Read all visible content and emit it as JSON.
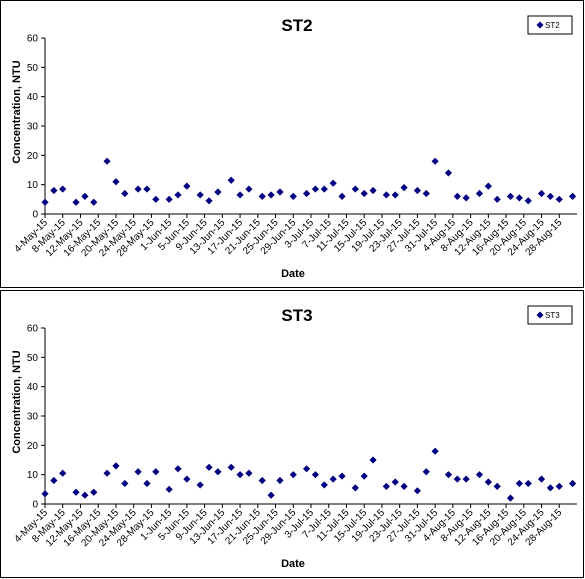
{
  "chart_data": [
    {
      "type": "scatter",
      "title": "ST2",
      "xlabel": "Date",
      "ylabel": "Concentration, NTU",
      "ylim": [
        0,
        60
      ],
      "yticks": [
        0,
        10,
        20,
        30,
        40,
        50,
        60
      ],
      "x_tick_labels": [
        "4-May-15",
        "8-May-15",
        "12-May-15",
        "16-May-15",
        "20-May-15",
        "24-May-15",
        "28-May-15",
        "1-Jun-15",
        "5-Jun-15",
        "9-Jun-15",
        "13-Jun-15",
        "17-Jun-15",
        "21-Jun-15",
        "25-Jun-15",
        "29-Jun-15",
        "3-Jul-15",
        "7-Jul-15",
        "11-Jul-15",
        "15-Jul-15",
        "19-Jul-15",
        "23-Jul-15",
        "27-Jul-15",
        "31-Jul-15",
        "4-Aug-15",
        "8-Aug-15",
        "12-Aug-15",
        "16-Aug-15",
        "20-Aug-15",
        "24-Aug-15",
        "28-Aug-15"
      ],
      "x_range": [
        "2015-05-04",
        "2015-09-01"
      ],
      "grid": false,
      "legend": "top-right",
      "series": [
        {
          "name": "ST2",
          "color": "#000080",
          "marker": "diamond",
          "points": [
            [
              "2015-05-04",
              4
            ],
            [
              "2015-05-06",
              8
            ],
            [
              "2015-05-08",
              8.5
            ],
            [
              "2015-05-11",
              4
            ],
            [
              "2015-05-13",
              6
            ],
            [
              "2015-05-15",
              4
            ],
            [
              "2015-05-18",
              18
            ],
            [
              "2015-05-20",
              11
            ],
            [
              "2015-05-22",
              7
            ],
            [
              "2015-05-25",
              8.5
            ],
            [
              "2015-05-27",
              8.5
            ],
            [
              "2015-05-29",
              5
            ],
            [
              "2015-06-01",
              5
            ],
            [
              "2015-06-03",
              6.5
            ],
            [
              "2015-06-05",
              9.5
            ],
            [
              "2015-06-08",
              6.5
            ],
            [
              "2015-06-10",
              4.5
            ],
            [
              "2015-06-12",
              7.5
            ],
            [
              "2015-06-15",
              11.5
            ],
            [
              "2015-06-17",
              6.5
            ],
            [
              "2015-06-19",
              8.5
            ],
            [
              "2015-06-22",
              6
            ],
            [
              "2015-06-24",
              6.5
            ],
            [
              "2015-06-26",
              7.5
            ],
            [
              "2015-06-29",
              6
            ],
            [
              "2015-07-02",
              7
            ],
            [
              "2015-07-04",
              8.5
            ],
            [
              "2015-07-06",
              8.5
            ],
            [
              "2015-07-08",
              10.5
            ],
            [
              "2015-07-10",
              6
            ],
            [
              "2015-07-13",
              8.5
            ],
            [
              "2015-07-15",
              7
            ],
            [
              "2015-07-17",
              8
            ],
            [
              "2015-07-20",
              6.5
            ],
            [
              "2015-07-22",
              6.5
            ],
            [
              "2015-07-24",
              9
            ],
            [
              "2015-07-27",
              8
            ],
            [
              "2015-07-29",
              7
            ],
            [
              "2015-07-31",
              18
            ],
            [
              "2015-08-03",
              14
            ],
            [
              "2015-08-05",
              6
            ],
            [
              "2015-08-07",
              5.5
            ],
            [
              "2015-08-10",
              7
            ],
            [
              "2015-08-12",
              9.5
            ],
            [
              "2015-08-14",
              5
            ],
            [
              "2015-08-17",
              6
            ],
            [
              "2015-08-19",
              5.5
            ],
            [
              "2015-08-21",
              4.5
            ],
            [
              "2015-08-24",
              7
            ],
            [
              "2015-08-26",
              6
            ],
            [
              "2015-08-28",
              5
            ],
            [
              "2015-08-31",
              6
            ]
          ]
        }
      ]
    },
    {
      "type": "scatter",
      "title": "ST3",
      "xlabel": "Date",
      "ylabel": "Concentration, NTU",
      "ylim": [
        0,
        60
      ],
      "yticks": [
        0,
        10,
        20,
        30,
        40,
        50,
        60
      ],
      "x_tick_labels": [
        "4-May-15",
        "8-May-15",
        "12-May-15",
        "16-May-15",
        "20-May-15",
        "24-May-15",
        "28-May-15",
        "1-Jun-15",
        "5-Jun-15",
        "9-Jun-15",
        "13-Jun-15",
        "17-Jun-15",
        "21-Jun-15",
        "25-Jun-15",
        "29-Jun-15",
        "3-Jul-15",
        "7-Jul-15",
        "11-Jul-15",
        "15-Jul-15",
        "19-Jul-15",
        "23-Jul-15",
        "27-Jul-15",
        "31-Jul-15",
        "4-Aug-15",
        "8-Aug-15",
        "12-Aug-15",
        "16-Aug-15",
        "20-Aug-15",
        "24-Aug-15",
        "28-Aug-15"
      ],
      "x_range": [
        "2015-05-04",
        "2015-09-01"
      ],
      "grid": false,
      "legend": "top-right",
      "series": [
        {
          "name": "ST3",
          "color": "#000080",
          "marker": "diamond",
          "points": [
            [
              "2015-05-04",
              3.5
            ],
            [
              "2015-05-06",
              8
            ],
            [
              "2015-05-08",
              10.5
            ],
            [
              "2015-05-11",
              4
            ],
            [
              "2015-05-13",
              3
            ],
            [
              "2015-05-15",
              4
            ],
            [
              "2015-05-18",
              10.5
            ],
            [
              "2015-05-20",
              13
            ],
            [
              "2015-05-22",
              7
            ],
            [
              "2015-05-25",
              11
            ],
            [
              "2015-05-27",
              7
            ],
            [
              "2015-05-29",
              11
            ],
            [
              "2015-06-01",
              5
            ],
            [
              "2015-06-03",
              12
            ],
            [
              "2015-06-05",
              8.5
            ],
            [
              "2015-06-08",
              6.5
            ],
            [
              "2015-06-10",
              12.5
            ],
            [
              "2015-06-12",
              11
            ],
            [
              "2015-06-15",
              12.5
            ],
            [
              "2015-06-17",
              10
            ],
            [
              "2015-06-19",
              10.5
            ],
            [
              "2015-06-22",
              8
            ],
            [
              "2015-06-24",
              3
            ],
            [
              "2015-06-26",
              8
            ],
            [
              "2015-06-29",
              10
            ],
            [
              "2015-07-02",
              12
            ],
            [
              "2015-07-04",
              10
            ],
            [
              "2015-07-06",
              6.5
            ],
            [
              "2015-07-08",
              8.5
            ],
            [
              "2015-07-10",
              9.5
            ],
            [
              "2015-07-13",
              5.5
            ],
            [
              "2015-07-15",
              9.5
            ],
            [
              "2015-07-17",
              15
            ],
            [
              "2015-07-20",
              6
            ],
            [
              "2015-07-22",
              7.5
            ],
            [
              "2015-07-24",
              6
            ],
            [
              "2015-07-27",
              4.5
            ],
            [
              "2015-07-29",
              11
            ],
            [
              "2015-07-31",
              18
            ],
            [
              "2015-08-03",
              10
            ],
            [
              "2015-08-05",
              8.5
            ],
            [
              "2015-08-07",
              8.5
            ],
            [
              "2015-08-10",
              10
            ],
            [
              "2015-08-12",
              7.5
            ],
            [
              "2015-08-14",
              6
            ],
            [
              "2015-08-17",
              2
            ],
            [
              "2015-08-19",
              7
            ],
            [
              "2015-08-21",
              7
            ],
            [
              "2015-08-24",
              8.5
            ],
            [
              "2015-08-26",
              5.5
            ],
            [
              "2015-08-28",
              6
            ],
            [
              "2015-08-31",
              7
            ]
          ]
        }
      ]
    }
  ]
}
